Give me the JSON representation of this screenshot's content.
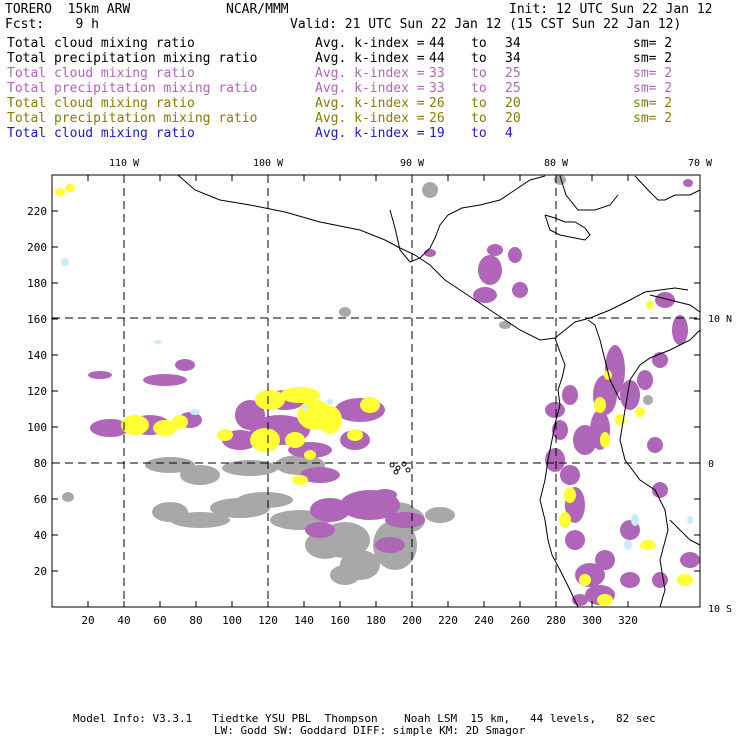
{
  "header": {
    "model": "TORERO  15km ARW",
    "org": "NCAR/MMM",
    "init": "Init: 12 UTC Sun 22 Jan 12",
    "fcst": "Fcst:    9 h",
    "valid": "Valid: 21 UTC Sun 22 Jan 12 (15 CST Sun 22 Jan 12)"
  },
  "legend": [
    {
      "field": "Total cloud mixing ratio",
      "kindex": "Avg. k-index = ",
      "from": "44",
      "to_word": "to",
      "to": "34",
      "sm": "sm= 2",
      "color": "#000000"
    },
    {
      "field": "Total precipitation mixing ratio",
      "kindex": "Avg. k-index = ",
      "from": "44",
      "to_word": "to",
      "to": "34",
      "sm": "sm= 2",
      "color": "#000000"
    },
    {
      "field": "Total cloud mixing ratio",
      "kindex": "Avg. k-index = ",
      "from": "33",
      "to_word": "to",
      "to": "25",
      "sm": "sm= 2",
      "color": "#b066b8"
    },
    {
      "field": "Total precipitation mixing ratio",
      "kindex": "Avg. k-index = ",
      "from": "33",
      "to_word": "to",
      "to": "25",
      "sm": "sm= 2",
      "color": "#b066b8"
    },
    {
      "field": "Total cloud mixing ratio",
      "kindex": "Avg. k-index = ",
      "from": "26",
      "to_word": "to",
      "to": "20",
      "sm": "sm= 2",
      "color": "#8a7a00"
    },
    {
      "field": "Total precipitation mixing ratio",
      "kindex": "Avg. k-index = ",
      "from": "26",
      "to_word": "to",
      "to": "20",
      "sm": "sm= 2",
      "color": "#8a7a00"
    },
    {
      "field": "Total cloud mixing ratio",
      "kindex": "Avg. k-index = ",
      "from": "19",
      "to_word": "to",
      "to": "4",
      "sm": "",
      "color": "#1a1acc"
    }
  ],
  "map": {
    "lon_labels": [
      "110 W",
      "100 W",
      "90 W",
      "80 W",
      "70 W"
    ],
    "lat_labels": [
      "10 N",
      "0",
      "10 S"
    ],
    "x_ticks": [
      "20",
      "40",
      "60",
      "80",
      "100",
      "120",
      "140",
      "160",
      "180",
      "200",
      "220",
      "240",
      "260",
      "280",
      "300",
      "320"
    ],
    "y_ticks": [
      "220",
      "200",
      "180",
      "160",
      "140",
      "120",
      "100",
      "80",
      "60",
      "40",
      "20"
    ],
    "colors": {
      "magenta": "#b066b8",
      "yellow": "#ffff33",
      "gray": "#a8a8a8",
      "cyan": "#c8ecf8",
      "coast": "#000000"
    }
  },
  "footer": {
    "line1": "Model Info: V3.3.1   Tiedtke YSU PBL  Thompson    Noah LSM  15 km,   44 levels,   82 sec",
    "line2": "LW: Godd SW: Goddard DIFF: simple KM: 2D Smagor"
  }
}
